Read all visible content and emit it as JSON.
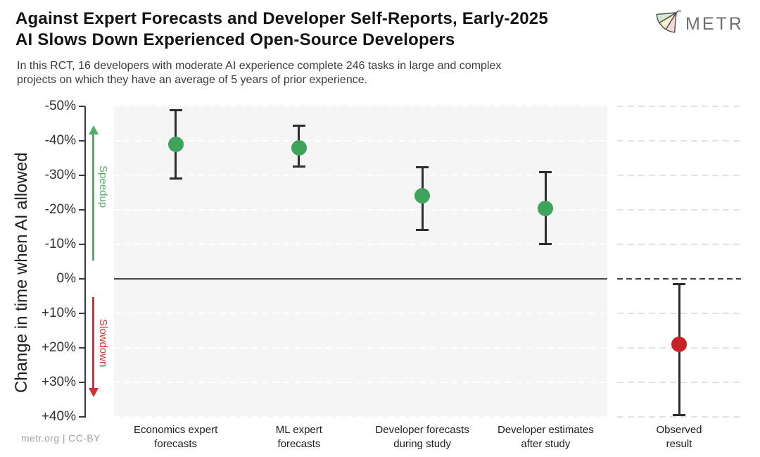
{
  "header": {
    "title_line1": "Against Expert Forecasts and Developer Self-Reports, Early-2025",
    "title_line2": "AI Slows Down Experienced Open-Source Developers",
    "subtitle_line1": "In this RCT, 16 developers with moderate AI experience complete 246 tasks in large and complex",
    "subtitle_line2": "projects on which they have an average of 5 years of prior experience.",
    "logo_text": "METR"
  },
  "footer": {
    "credit": "metr.org  |  CC-BY"
  },
  "colors": {
    "forecast_point": "#3fa45b",
    "observed_point": "#c82127",
    "error_bar": "#2d2d2d",
    "panel_background": "#f5f5f5",
    "speedup_green": "#53ad68",
    "slowdown_red": "#d23030",
    "axis": "#3b3b3b"
  },
  "chart_data": {
    "type": "scatter",
    "title": "Against Expert Forecasts and Developer Self-Reports, Early-2025 AI Slows Down Experienced Open-Source Developers",
    "ylabel": "Change in time when AI allowed",
    "ylim": [
      -50,
      40
    ],
    "y_direction": "negative-values-at-top",
    "grid": "horizontal-dashed",
    "zero_line": true,
    "legend": "none",
    "yticks": [
      {
        "value": -50,
        "label": "-50%"
      },
      {
        "value": -40,
        "label": "-40%"
      },
      {
        "value": -30,
        "label": "-30%"
      },
      {
        "value": -20,
        "label": "-20%"
      },
      {
        "value": -10,
        "label": "-10%"
      },
      {
        "value": 0,
        "label": "0%"
      },
      {
        "value": 10,
        "label": "+10%"
      },
      {
        "value": 20,
        "label": "+20%"
      },
      {
        "value": 30,
        "label": "+30%"
      },
      {
        "value": 40,
        "label": "+40%"
      }
    ],
    "annotations": {
      "speedup": {
        "label": "Speedup",
        "direction": "up",
        "color": "#53ad68"
      },
      "slowdown": {
        "label": "Slowdown",
        "direction": "down",
        "color": "#d23030"
      }
    },
    "panels": [
      {
        "name": "forecasts",
        "background": "#f5f5f5",
        "points": [
          {
            "label": "Economics expert forecasts",
            "label_lines": [
              "Economics expert",
              "forecasts"
            ],
            "value": -39,
            "ci": [
              -49,
              -29
            ],
            "color": "#3fa45b"
          },
          {
            "label": "ML expert forecasts",
            "label_lines": [
              "ML expert",
              "forecasts"
            ],
            "value": -38,
            "ci": [
              -44.5,
              -32.5
            ],
            "color": "#3fa45b"
          },
          {
            "label": "Developer forecasts during study",
            "label_lines": [
              "Developer forecasts",
              "during study"
            ],
            "value": -24,
            "ci": [
              -32.5,
              -14
            ],
            "color": "#3fa45b"
          },
          {
            "label": "Developer estimates after study",
            "label_lines": [
              "Developer estimates",
              "after study"
            ],
            "value": -20.5,
            "ci": [
              -31,
              -10
            ],
            "color": "#3fa45b"
          }
        ]
      },
      {
        "name": "observed",
        "background": "#ffffff",
        "points": [
          {
            "label": "Observed result",
            "label_lines": [
              "Observed",
              "result"
            ],
            "value": 19,
            "ci": [
              1.5,
              39.5
            ],
            "color": "#c82127"
          }
        ]
      }
    ]
  }
}
